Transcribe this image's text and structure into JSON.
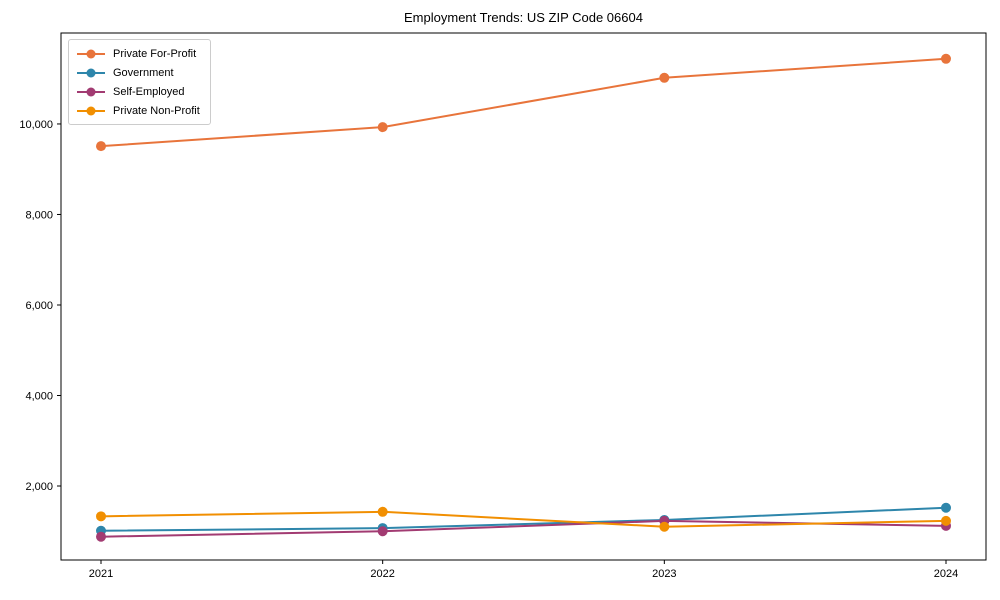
{
  "chart_data": {
    "type": "line",
    "title": "Employment Trends: US ZIP Code 06604",
    "xlabel": "",
    "ylabel": "",
    "x": [
      2021,
      2022,
      2023,
      2024
    ],
    "xtick_labels": [
      "2021",
      "2022",
      "2023",
      "2024"
    ],
    "yticks": [
      2000,
      4000,
      6000,
      8000,
      10000
    ],
    "ytick_labels": [
      "2,000",
      "4,000",
      "6,000",
      "8,000",
      "10,000"
    ],
    "ylim": [
      365,
      12010
    ],
    "grid": false,
    "marker": "circle",
    "legend_position": "upper left",
    "axis_color": "#000000",
    "background_color": "#ffffff",
    "series": [
      {
        "name": "Private For-Profit",
        "color": "#E8743B",
        "values": [
          9510,
          9930,
          11020,
          11440
        ]
      },
      {
        "name": "Government",
        "color": "#2E86AB",
        "values": [
          1010,
          1070,
          1250,
          1520
        ]
      },
      {
        "name": "Self-Employed",
        "color": "#A23B72",
        "values": [
          880,
          1000,
          1230,
          1120
        ]
      },
      {
        "name": "Private Non-Profit",
        "color": "#F18F01",
        "values": [
          1330,
          1430,
          1100,
          1230
        ]
      }
    ]
  }
}
